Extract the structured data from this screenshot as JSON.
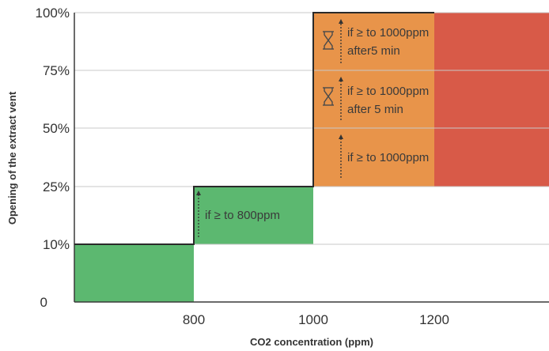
{
  "chart_data": {
    "type": "step",
    "xlabel": "CO2 concentration (ppm)",
    "ylabel": "Opening of the extract vent",
    "x_ticks": [
      "800",
      "1000",
      "1200"
    ],
    "y_ticks": [
      "0",
      "10%",
      "25%",
      "50%",
      "75%",
      "100%"
    ],
    "step_line": [
      {
        "from_ppm": 800,
        "to_ppm": 1000,
        "opening": "25%"
      },
      {
        "from_ppm": 1000,
        "to_ppm": 1000,
        "opening": "25% to 100%"
      }
    ],
    "step_line_start": {
      "ppm": 800,
      "opening": "10%"
    },
    "zones": [
      {
        "from_ppm": 800,
        "to_ppm": 1000,
        "opening_from": "0",
        "opening_to": "10%",
        "color": "#5cb870"
      },
      {
        "from_ppm": 800,
        "to_ppm": 1000,
        "opening_from": "10%",
        "opening_to": "25%",
        "color": "#5cb870"
      },
      {
        "from_ppm": 1000,
        "to_ppm": 1200,
        "opening_from": "25%",
        "opening_to": "100%",
        "color": "#e8944a"
      },
      {
        "from_ppm": 1200,
        "to_ppm": 1400,
        "opening_from": "25%",
        "opening_to": "100%",
        "color": "#d85a48"
      }
    ],
    "annotations": [
      {
        "text": "if ≥ to 800ppm",
        "level": "10% to 25%",
        "timer": false
      },
      {
        "text": "if ≥ to 1000ppm",
        "level": "25% to 50%",
        "timer": false
      },
      {
        "lines": [
          "if ≥ to 1000ppm",
          "after 5 min"
        ],
        "level": "50% to 75%",
        "timer": true
      },
      {
        "lines": [
          "if ≥ to 1000ppm",
          "after5 min"
        ],
        "level": "75% to 100%",
        "timer": true
      }
    ],
    "grid": true,
    "colors": {
      "green": "#5cb870",
      "orange": "#e8944a",
      "red": "#d85a48",
      "grid": "#c8c8c8",
      "line": "#3a3a3a"
    }
  }
}
